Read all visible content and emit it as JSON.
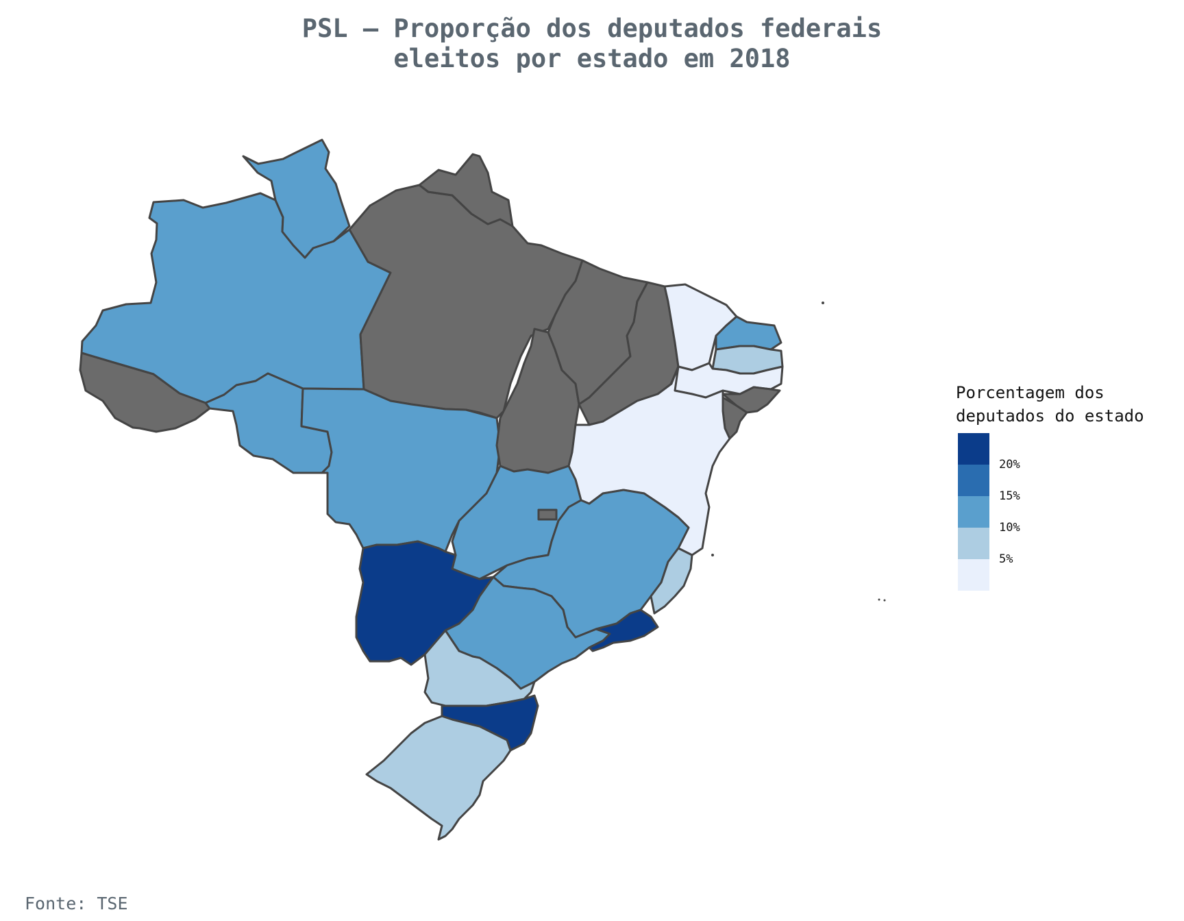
{
  "title_line1": "PSL – Proporção dos deputados federais",
  "title_line2": "eleitos por estado em 2018",
  "legend": {
    "title_line1": "Porcentagem dos",
    "title_line2": "deputados do estado",
    "bins": [
      {
        "label": "20%",
        "color": "#0b3c8a"
      },
      {
        "label": "15%",
        "color": "#2a6db0"
      },
      {
        "label": "10%",
        "color": "#5a9fcd"
      },
      {
        "label": "5%",
        "color": "#adcde2"
      },
      {
        "label": "",
        "color": "#e9f0fc"
      }
    ]
  },
  "colors": {
    "darkest": "#0b3c8a",
    "mid": "#5a9fcd",
    "light": "#adcde2",
    "lightest": "#e9f0fc",
    "no_data": "#6b6b6b",
    "border": "#444444"
  },
  "states": [
    {
      "id": "AM",
      "fill": "mid"
    },
    {
      "id": "RR",
      "fill": "mid"
    },
    {
      "id": "AC",
      "fill": "no_data"
    },
    {
      "id": "RO",
      "fill": "mid"
    },
    {
      "id": "PA",
      "fill": "no_data"
    },
    {
      "id": "AP",
      "fill": "no_data"
    },
    {
      "id": "MT",
      "fill": "mid"
    },
    {
      "id": "TO",
      "fill": "no_data"
    },
    {
      "id": "MA",
      "fill": "no_data"
    },
    {
      "id": "PI",
      "fill": "no_data"
    },
    {
      "id": "CE",
      "fill": "lightest"
    },
    {
      "id": "RN",
      "fill": "mid"
    },
    {
      "id": "PB",
      "fill": "light"
    },
    {
      "id": "PE",
      "fill": "lightest"
    },
    {
      "id": "AL",
      "fill": "no_data"
    },
    {
      "id": "SE",
      "fill": "no_data"
    },
    {
      "id": "BA",
      "fill": "lightest"
    },
    {
      "id": "GO",
      "fill": "mid"
    },
    {
      "id": "DF",
      "fill": "no_data"
    },
    {
      "id": "MG",
      "fill": "mid"
    },
    {
      "id": "ES",
      "fill": "light"
    },
    {
      "id": "MS",
      "fill": "darkest"
    },
    {
      "id": "SP",
      "fill": "mid"
    },
    {
      "id": "RJ",
      "fill": "darkest"
    },
    {
      "id": "PR",
      "fill": "light"
    },
    {
      "id": "SC",
      "fill": "darkest"
    },
    {
      "id": "RS",
      "fill": "light"
    }
  ],
  "source": "Fonte: TSE"
}
